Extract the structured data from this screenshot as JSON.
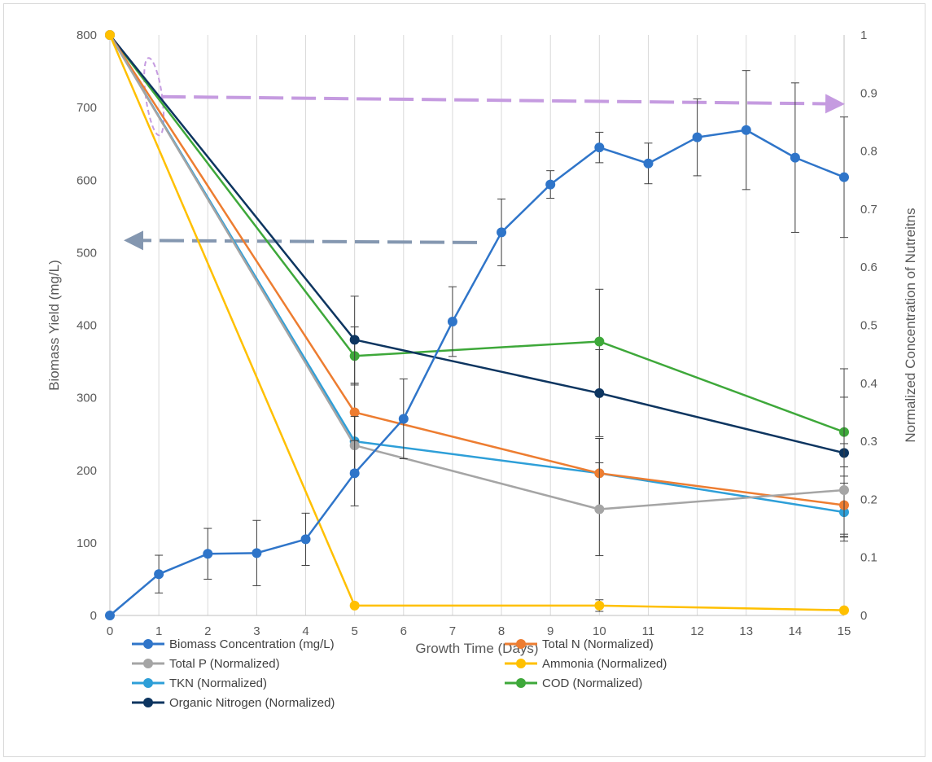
{
  "chart_data": {
    "type": "line",
    "title": "",
    "xlabel": "Growth Time (Days)",
    "ylabel": "Biomass Yield (mg/L)",
    "y2label": "Normalized Concentration of Nutreitns",
    "x_ticks": [
      0,
      1,
      2,
      3,
      4,
      5,
      6,
      7,
      8,
      9,
      10,
      11,
      12,
      13,
      14,
      15
    ],
    "ylim": [
      0,
      800
    ],
    "y_ticks": [
      0,
      100,
      200,
      300,
      400,
      500,
      600,
      700,
      800
    ],
    "y2lim": [
      0,
      1
    ],
    "y2_ticks": [
      "0",
      "0.1",
      "0.2",
      "0.3",
      "0.4",
      "0.5",
      "0.6",
      "0.7",
      "0.8",
      "0.9",
      "1"
    ],
    "grid": "vertical",
    "legend_position": "bottom",
    "series": [
      {
        "name": "Biomass Concentration (mg/L)",
        "axis": "left",
        "color": "#2f75c9",
        "x": [
          0,
          1,
          2,
          3,
          4,
          5,
          6,
          7,
          8,
          9,
          10,
          11,
          12,
          13,
          14,
          15
        ],
        "y": [
          0,
          57,
          85,
          86,
          105,
          196,
          271,
          405,
          528,
          594,
          645,
          623,
          659,
          669,
          631,
          604
        ],
        "err": [
          0,
          26,
          35,
          45,
          36,
          45,
          55,
          48,
          46,
          19,
          21,
          28,
          53,
          82,
          103,
          83
        ]
      },
      {
        "name": "Total N (Normalized)",
        "axis": "right",
        "color": "#ed7d31",
        "x": [
          0,
          5,
          10,
          15
        ],
        "y": [
          1,
          0.35,
          0.245,
          0.19
        ],
        "err": [
          0,
          0.05,
          0.06,
          0.05
        ]
      },
      {
        "name": "Total P (Normalized)",
        "axis": "right",
        "color": "#a5a5a5",
        "x": [
          0,
          5,
          10,
          15
        ],
        "y": [
          1,
          0.293,
          0.183,
          0.216
        ],
        "err": [
          0,
          0.05,
          0.08,
          0.08
        ]
      },
      {
        "name": "Ammonia (Normalized)",
        "axis": "right",
        "color": "#ffc000",
        "x": [
          0,
          5,
          10,
          15
        ],
        "y": [
          1,
          0.017,
          0.017,
          0.009
        ],
        "err": [
          0,
          0,
          0.01,
          0
        ]
      },
      {
        "name": "TKN (Normalized)",
        "axis": "right",
        "color": "#2e9fd8",
        "x": [
          0,
          5,
          10,
          15
        ],
        "y": [
          1,
          0.3,
          0.245,
          0.178
        ],
        "err": [
          0,
          0.05,
          0.06,
          0.05
        ]
      },
      {
        "name": "COD (Normalized)",
        "axis": "right",
        "color": "#3ea83a",
        "x": [
          0,
          5,
          10,
          15
        ],
        "y": [
          1,
          0.447,
          0.472,
          0.316
        ],
        "err": [
          0,
          0.05,
          0.09,
          0.06
        ]
      },
      {
        "name": "Organic Nitrogen (Normalized)",
        "axis": "right",
        "color": "#0d3560",
        "x": [
          0,
          5,
          10,
          15
        ],
        "y": [
          1,
          0.475,
          0.383,
          0.28
        ],
        "err": [
          0,
          0.075,
          0.075,
          0.145
        ]
      }
    ],
    "annotations": [
      {
        "type": "dashed-arrow",
        "color": "#c59be0",
        "direction": "right",
        "meaning": "series read on right axis"
      },
      {
        "type": "dashed-arrow",
        "color": "#8497b0",
        "direction": "left",
        "meaning": "series read on left axis"
      },
      {
        "type": "dashed-ellipse",
        "color": "#c59be0"
      }
    ]
  }
}
